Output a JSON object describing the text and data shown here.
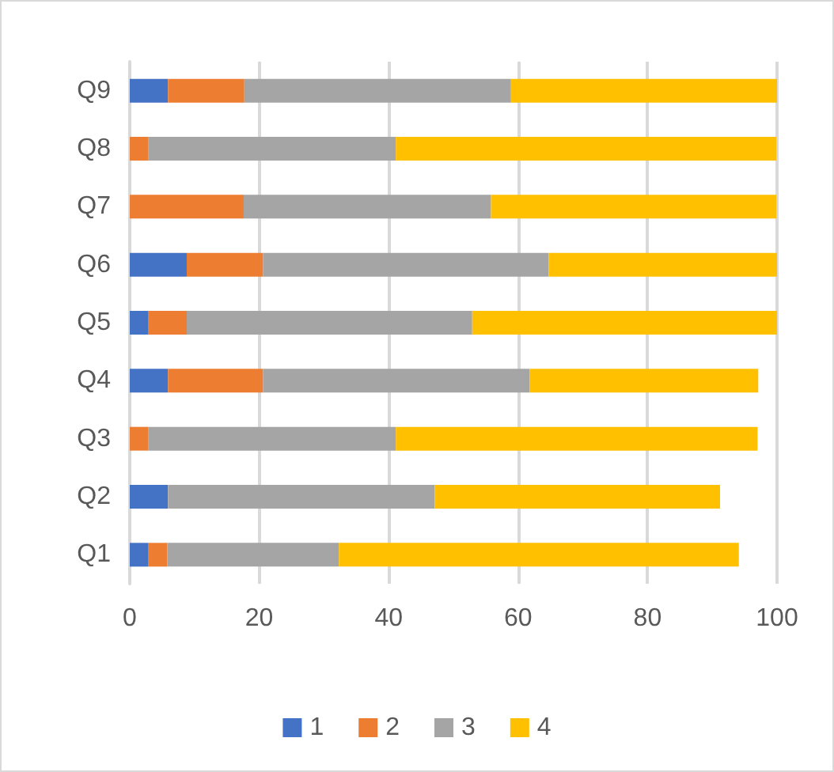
{
  "chart_data": {
    "type": "bar",
    "orientation": "horizontal",
    "stacked": true,
    "categories": [
      "Q9",
      "Q8",
      "Q7",
      "Q6",
      "Q5",
      "Q4",
      "Q3",
      "Q2",
      "Q1"
    ],
    "series": [
      {
        "name": "1",
        "color": "#4472c4",
        "values": [
          5.9,
          null,
          null,
          8.8,
          2.9,
          5.9,
          null,
          5.9,
          2.9
        ]
      },
      {
        "name": "2",
        "color": "#ed7d31",
        "values": [
          11.8,
          2.9,
          17.6,
          11.8,
          5.9,
          14.7,
          2.9,
          null,
          2.9
        ]
      },
      {
        "name": "3",
        "color": "#a5a5a5",
        "values": [
          41.2,
          38.2,
          38.2,
          44.1,
          44.1,
          41.2,
          38.2,
          41.2,
          26.5
        ]
      },
      {
        "name": "4",
        "color": "#ffc000",
        "values": [
          41.2,
          58.8,
          44.1,
          35.3,
          47.1,
          35.3,
          55.9,
          44.1,
          61.8
        ]
      }
    ],
    "xlim": [
      0,
      100
    ],
    "xticks": [
      0,
      20,
      40,
      60,
      80,
      100
    ],
    "grid": "x",
    "legend": "bottom"
  }
}
